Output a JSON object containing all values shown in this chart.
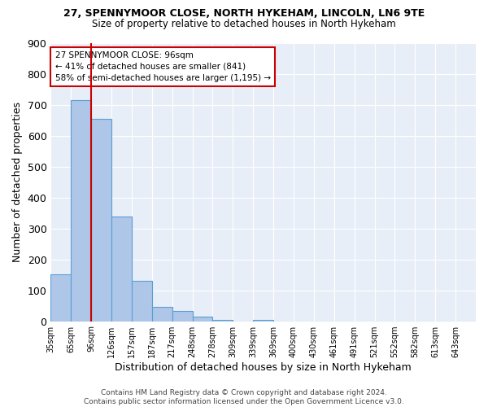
{
  "title1": "27, SPENNYMOOR CLOSE, NORTH HYKEHAM, LINCOLN, LN6 9TE",
  "title2": "Size of property relative to detached houses in North Hykeham",
  "xlabel": "Distribution of detached houses by size in North Hykeham",
  "ylabel": "Number of detached properties",
  "bar_color": "#aec6e8",
  "bar_edge_color": "#5a9fd4",
  "vline_color": "#cc0000",
  "vline_x_index": 2,
  "categories": [
    "35sqm",
    "65sqm",
    "96sqm",
    "126sqm",
    "157sqm",
    "187sqm",
    "217sqm",
    "248sqm",
    "278sqm",
    "309sqm",
    "339sqm",
    "369sqm",
    "400sqm",
    "430sqm",
    "461sqm",
    "491sqm",
    "521sqm",
    "552sqm",
    "582sqm",
    "613sqm",
    "643sqm"
  ],
  "values": [
    152,
    715,
    654,
    337,
    130,
    45,
    32,
    14,
    5,
    0,
    5,
    0,
    0,
    0,
    0,
    0,
    0,
    0,
    0,
    0,
    0
  ],
  "ylim": [
    0,
    900
  ],
  "yticks": [
    0,
    100,
    200,
    300,
    400,
    500,
    600,
    700,
    800,
    900
  ],
  "annotation_text": "27 SPENNYMOOR CLOSE: 96sqm\n← 41% of detached houses are smaller (841)\n58% of semi-detached houses are larger (1,195) →",
  "annotation_box_color": "#ffffff",
  "annotation_box_edge": "#cc0000",
  "bg_color": "#e8eef7",
  "footer": "Contains HM Land Registry data © Crown copyright and database right 2024.\nContains public sector information licensed under the Open Government Licence v3.0."
}
